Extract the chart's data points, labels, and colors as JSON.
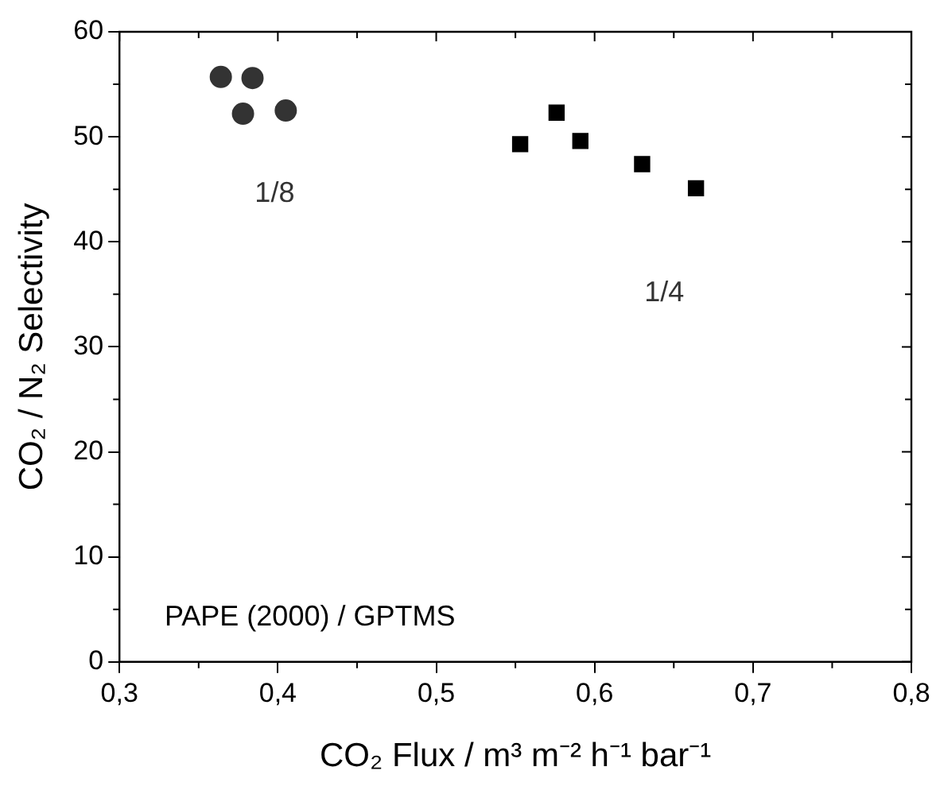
{
  "chart_data": {
    "type": "scatter",
    "xlabel": "CO₂ Flux / m³ m⁻² h⁻¹ bar⁻¹",
    "ylabel": "CO₂ / N₂ Selectivity",
    "series": [
      {
        "color": "#333333",
        "marker": "circle",
        "x": [
          0.364,
          0.384,
          0.378,
          0.405
        ],
        "values": [
          55.7,
          55.6,
          52.2,
          52.5
        ]
      },
      {
        "color": "#000000",
        "marker": "square",
        "x": [
          0.553,
          0.576,
          0.591,
          0.63,
          0.664
        ],
        "values": [
          49.3,
          52.3,
          49.6,
          47.4,
          45.1
        ]
      }
    ],
    "xlim": [
      0.3,
      0.8
    ],
    "xticks": [
      {
        "value": 0.3,
        "label": "0,3"
      },
      {
        "value": 0.4,
        "label": "0,4"
      },
      {
        "value": 0.5,
        "label": "0,5"
      },
      {
        "value": 0.6,
        "label": "0,6"
      },
      {
        "value": 0.7,
        "label": "0,7"
      },
      {
        "value": 0.8,
        "label": "0,8"
      }
    ],
    "ylim": [
      0,
      60
    ],
    "yticks": [
      0,
      10,
      20,
      30,
      40,
      50,
      60
    ],
    "grid": false,
    "legend": false,
    "annotations": [
      "1/8",
      "1/4",
      "PAPE (2000) / GPTMS"
    ]
  }
}
